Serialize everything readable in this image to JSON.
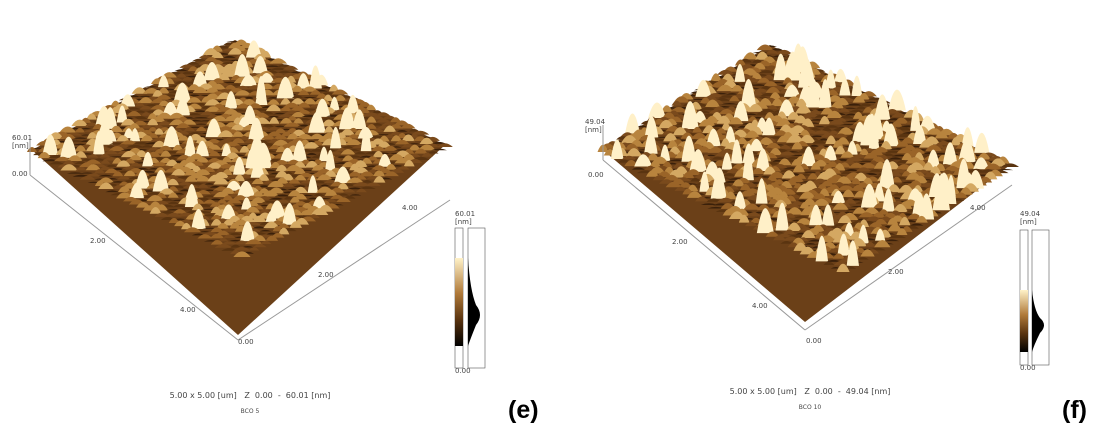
{
  "panels": [
    {
      "label": "(e)",
      "z_top": "60.01",
      "z_unit": "[nm]",
      "z_base": "0.00",
      "x_axis": [
        "2.00",
        "4.00"
      ],
      "y_axis": [
        "4.00",
        "2.00"
      ],
      "origin": "0.00",
      "bar_top": "60.01",
      "bar_unit": "[nm]",
      "bar_bottom": "0.00",
      "caption": "5.00 x 5.00 [um]   Z  0.00  -  60.01 [nm]",
      "sample": "BCO 5"
    },
    {
      "label": "(f)",
      "z_top": "49.04",
      "z_unit": "[nm]",
      "z_base": "0.00",
      "x_axis": [
        "2.00",
        "4.00"
      ],
      "y_axis": [
        "4.00",
        "2.00"
      ],
      "origin": "0.00",
      "bar_top": "49.04",
      "bar_unit": "[nm]",
      "bar_bottom": "0.00",
      "caption": "5.00 x 5.00 [um]   Z  0.00  -  49.04 [nm]",
      "sample": "BCO 10"
    }
  ]
}
